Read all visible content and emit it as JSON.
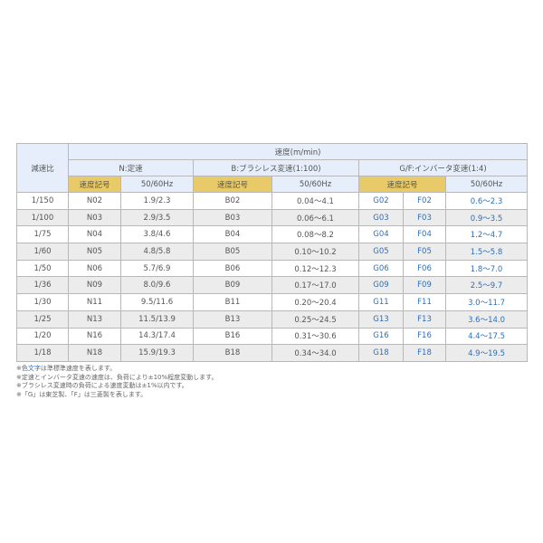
{
  "header": {
    "ratio": "減速比",
    "speed": "速度(m/min)",
    "n_group": "N:定速",
    "b_group": "B:ブラシレス変速(1:100)",
    "gf_group": "G/F:インバータ変速(1:4)",
    "code": "速度記号",
    "hz": "50/60Hz"
  },
  "rows": [
    {
      "ratio": "1/150",
      "n": "N02",
      "nhz": "1.9/2.3",
      "b": "B02",
      "bhz": "0.04～4.1",
      "g": "G02",
      "f": "F02",
      "gfhz": "0.6～2.3"
    },
    {
      "ratio": "1/100",
      "n": "N03",
      "nhz": "2.9/3.5",
      "b": "B03",
      "bhz": "0.06～6.1",
      "g": "G03",
      "f": "F03",
      "gfhz": "0.9～3.5"
    },
    {
      "ratio": "1/75",
      "n": "N04",
      "nhz": "3.8/4.6",
      "b": "B04",
      "bhz": "0.08～8.2",
      "g": "G04",
      "f": "F04",
      "gfhz": "1.2～4.7"
    },
    {
      "ratio": "1/60",
      "n": "N05",
      "nhz": "4.8/5.8",
      "b": "B05",
      "bhz": "0.10～10.2",
      "g": "G05",
      "f": "F05",
      "gfhz": "1.5～5.8"
    },
    {
      "ratio": "1/50",
      "n": "N06",
      "nhz": "5.7/6.9",
      "b": "B06",
      "bhz": "0.12～12.3",
      "g": "G06",
      "f": "F06",
      "gfhz": "1.8～7.0"
    },
    {
      "ratio": "1/36",
      "n": "N09",
      "nhz": "8.0/9.6",
      "b": "B09",
      "bhz": "0.17～17.0",
      "g": "G09",
      "f": "F09",
      "gfhz": "2.5～9.7"
    },
    {
      "ratio": "1/30",
      "n": "N11",
      "nhz": "9.5/11.6",
      "b": "B11",
      "bhz": "0.20～20.4",
      "g": "G11",
      "f": "F11",
      "gfhz": "3.0～11.7"
    },
    {
      "ratio": "1/25",
      "n": "N13",
      "nhz": "11.5/13.9",
      "b": "B13",
      "bhz": "0.25～24.5",
      "g": "G13",
      "f": "F13",
      "gfhz": "3.6～14.0"
    },
    {
      "ratio": "1/20",
      "n": "N16",
      "nhz": "14.3/17.4",
      "b": "B16",
      "bhz": "0.31～30.6",
      "g": "G16",
      "f": "F16",
      "gfhz": "4.4～17.5"
    },
    {
      "ratio": "1/18",
      "n": "N18",
      "nhz": "15.9/19.3",
      "b": "B18",
      "bhz": "0.34～34.0",
      "g": "G18",
      "f": "F18",
      "gfhz": "4.9～19.5"
    }
  ],
  "notes": {
    "n1_prefix": "※",
    "n1_colored": "色文字",
    "n1_rest": "は準標準速度を表します。",
    "n2": "※定速とインバータ変速の速度は、負荷により±10%程度変動します。",
    "n3": "※ブラシレス変速時の負荷による速度変動は±1%以内です。",
    "n4": "※「G」は東芝製、「F」は三菱製を表します。"
  },
  "colors": {
    "accent_text": "#2d6fb8",
    "header_bg": "#e5eefa",
    "code_header_bg": "#e8cb68"
  }
}
